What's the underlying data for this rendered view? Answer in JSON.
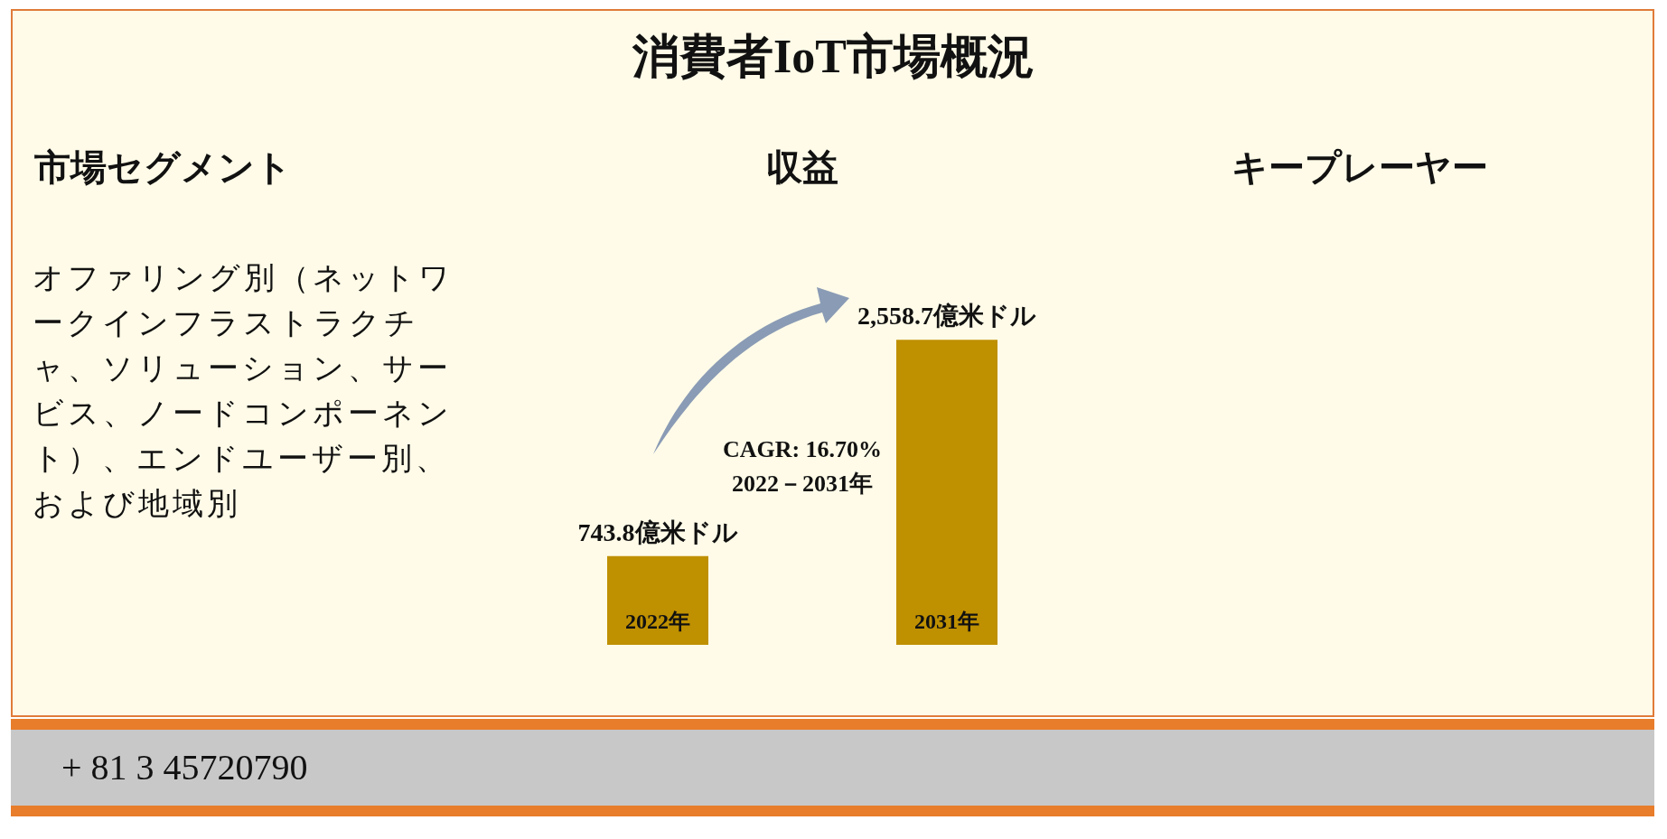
{
  "chart_data": {
    "type": "bar",
    "title": "消費者IoT市場概況",
    "categories": [
      "2022年",
      "2031年"
    ],
    "values": [
      743.8,
      2558.7
    ],
    "value_labels": [
      "743.8億米ドル",
      "2,558.7億米ドル"
    ],
    "color": "#bf9000",
    "legend": false,
    "annotations": [
      "市場セグメント",
      "収益",
      "キープレーヤー",
      "オファリング別（ネットワークインフラストラクチャ、ソリューション、サービス、ノードコンポーネント）、エンドユーザー別、および地域別",
      "CAGR: 16.70%",
      "2022－2031年",
      "+ 81 3 45720790"
    ]
  }
}
